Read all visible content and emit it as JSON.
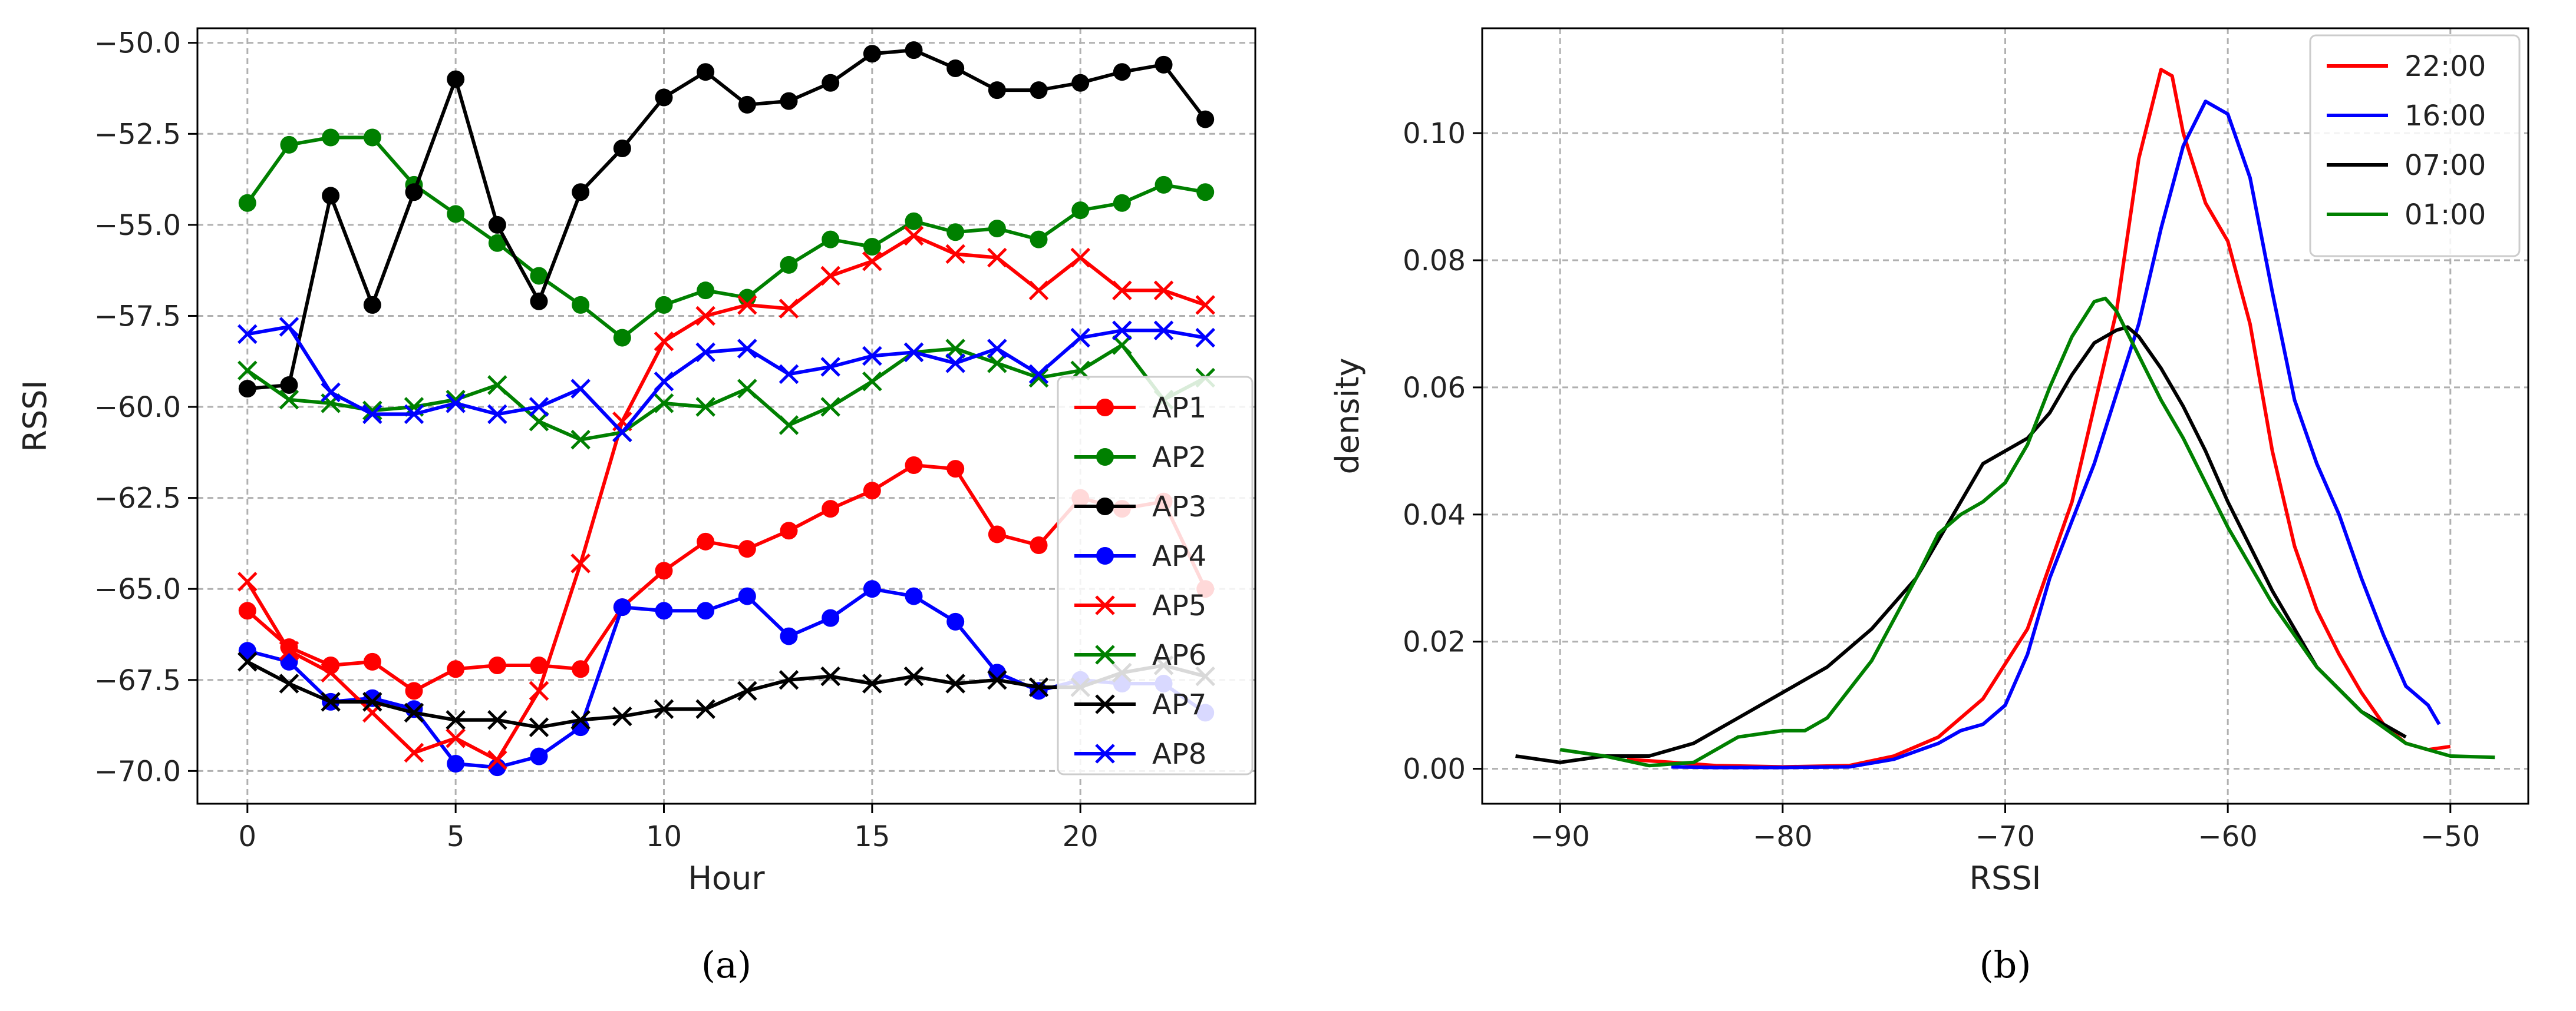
{
  "chart_data": [
    {
      "id": "a",
      "type": "line",
      "caption": "(a)",
      "title": "",
      "xlabel": "Hour",
      "ylabel": "RSSI",
      "xlim": [
        -1.2,
        24.2
      ],
      "ylim": [
        -70.9,
        -49.6
      ],
      "xticks": [
        0,
        5,
        10,
        15,
        20
      ],
      "xtick_labels": [
        "0",
        "5",
        "10",
        "15",
        "20"
      ],
      "yticks": [
        -70.0,
        -67.5,
        -65.0,
        -62.5,
        -60.0,
        -57.5,
        -55.0,
        -52.5,
        -50.0
      ],
      "ytick_labels": [
        "−70.0",
        "−67.5",
        "−65.0",
        "−62.5",
        "−60.0",
        "−57.5",
        "−55.0",
        "−52.5",
        "−50.0"
      ],
      "grid": true,
      "legend_position": "right",
      "x": [
        0,
        1,
        2,
        3,
        4,
        5,
        6,
        7,
        8,
        9,
        10,
        11,
        12,
        13,
        14,
        15,
        16,
        17,
        18,
        19,
        20,
        21,
        22,
        23
      ],
      "series": [
        {
          "name": "AP1",
          "color": "#ff0000",
          "marker": "circle",
          "values": [
            -65.6,
            -66.6,
            -67.1,
            -67.0,
            -67.8,
            -67.2,
            -67.1,
            -67.1,
            -67.2,
            -65.5,
            -64.5,
            -63.7,
            -63.9,
            -63.4,
            -62.8,
            -62.3,
            -61.6,
            -61.7,
            -63.5,
            -63.8,
            -62.5,
            -62.8,
            -62.6,
            -65.0
          ]
        },
        {
          "name": "AP2",
          "color": "#008000",
          "marker": "circle",
          "values": [
            -54.4,
            -52.8,
            -52.6,
            -52.6,
            -53.9,
            -54.7,
            -55.5,
            -56.4,
            -57.2,
            -58.1,
            -57.2,
            -56.8,
            -57.0,
            -56.1,
            -55.4,
            -55.6,
            -54.9,
            -55.2,
            -55.1,
            -55.4,
            -54.6,
            -54.4,
            -53.9,
            -54.1
          ]
        },
        {
          "name": "AP3",
          "color": "#000000",
          "marker": "circle",
          "values": [
            -59.5,
            -59.4,
            -54.2,
            -57.2,
            -54.1,
            -51.0,
            -55.0,
            -57.1,
            -54.1,
            -52.9,
            -51.5,
            -50.8,
            -51.7,
            -51.6,
            -51.1,
            -50.3,
            -50.2,
            -50.7,
            -51.3,
            -51.3,
            -51.1,
            -50.8,
            -50.6,
            -52.1
          ]
        },
        {
          "name": "AP4",
          "color": "#0000ff",
          "marker": "circle",
          "values": [
            -66.7,
            -67.0,
            -68.1,
            -68.0,
            -68.3,
            -69.8,
            -69.9,
            -69.6,
            -68.8,
            -65.5,
            -65.6,
            -65.6,
            -65.2,
            -66.3,
            -65.8,
            -65.0,
            -65.2,
            -65.9,
            -67.3,
            -67.8,
            -67.5,
            -67.6,
            -67.6,
            -68.4
          ]
        },
        {
          "name": "AP5",
          "color": "#ff0000",
          "marker": "x",
          "values": [
            -64.8,
            -66.7,
            -67.3,
            -68.4,
            -69.5,
            -69.1,
            -69.7,
            -67.8,
            -64.3,
            -60.4,
            -58.2,
            -57.5,
            -57.2,
            -57.3,
            -56.4,
            -56.0,
            -55.3,
            -55.8,
            -55.9,
            -56.8,
            -55.9,
            -56.8,
            -56.8,
            -57.2
          ]
        },
        {
          "name": "AP6",
          "color": "#008000",
          "marker": "x",
          "values": [
            -59.0,
            -59.8,
            -59.9,
            -60.1,
            -60.0,
            -59.8,
            -59.4,
            -60.4,
            -60.9,
            -60.7,
            -59.9,
            -60.0,
            -59.5,
            -60.5,
            -60.0,
            -59.3,
            -58.5,
            -58.4,
            -58.8,
            -59.2,
            -59.0,
            -58.3,
            -59.8,
            -59.2
          ]
        },
        {
          "name": "AP7",
          "color": "#000000",
          "marker": "x",
          "values": [
            -67.0,
            -67.6,
            -68.1,
            -68.1,
            -68.4,
            -68.6,
            -68.6,
            -68.8,
            -68.6,
            -68.5,
            -68.3,
            -68.3,
            -67.8,
            -67.5,
            -67.4,
            -67.6,
            -67.4,
            -67.6,
            -67.5,
            -67.7,
            -67.7,
            -67.3,
            -67.1,
            -67.4
          ]
        },
        {
          "name": "AP8",
          "color": "#0000ff",
          "marker": "x",
          "values": [
            -58.0,
            -57.8,
            -59.6,
            -60.2,
            -60.2,
            -59.9,
            -60.2,
            -60.0,
            -59.5,
            -60.7,
            -59.3,
            -58.5,
            -58.4,
            -59.1,
            -58.9,
            -58.6,
            -58.5,
            -58.8,
            -58.4,
            -59.1,
            -58.1,
            -57.9,
            -57.9,
            -58.1
          ]
        }
      ]
    },
    {
      "id": "b",
      "type": "line",
      "caption": "(b)",
      "title": "",
      "xlabel": "RSSI",
      "ylabel": "density",
      "xlim": [
        -93.5,
        -46.5
      ],
      "ylim": [
        -0.0055,
        0.1165
      ],
      "xticks": [
        -90,
        -80,
        -70,
        -60,
        -50
      ],
      "xtick_labels": [
        "−90",
        "−80",
        "−70",
        "−60",
        "−50"
      ],
      "yticks": [
        0.0,
        0.02,
        0.04,
        0.06,
        0.08,
        0.1
      ],
      "ytick_labels": [
        "0.00",
        "0.02",
        "0.04",
        "0.06",
        "0.08",
        "0.10"
      ],
      "grid": true,
      "legend_position": "top-right",
      "series": [
        {
          "name": "22:00",
          "color": "#ff0000",
          "x": [
            -87,
            -85,
            -83,
            -80,
            -77,
            -75,
            -73,
            -71,
            -69,
            -67,
            -65,
            -64,
            -63,
            -62.5,
            -62,
            -61,
            -60,
            -59,
            -58,
            -57,
            -56,
            -55,
            -54,
            -53,
            -52,
            -51,
            -50
          ],
          "y": [
            0.0015,
            0.001,
            0.0005,
            0.0003,
            0.0005,
            0.002,
            0.005,
            0.011,
            0.022,
            0.042,
            0.072,
            0.096,
            0.11,
            0.109,
            0.1,
            0.089,
            0.083,
            0.07,
            0.05,
            0.035,
            0.025,
            0.018,
            0.012,
            0.007,
            0.004,
            0.003,
            0.0035
          ]
        },
        {
          "name": "16:00",
          "color": "#0000ff",
          "x": [
            -85,
            -83,
            -80,
            -77,
            -75,
            -73,
            -72,
            -71,
            -70,
            -69,
            -68,
            -66,
            -64,
            -63,
            -62,
            -61,
            -60,
            -59,
            -58,
            -57,
            -56,
            -55,
            -54,
            -53,
            -52,
            -51,
            -50.5
          ],
          "y": [
            0.0003,
            0.0002,
            0.0002,
            0.0003,
            0.0015,
            0.004,
            0.006,
            0.007,
            0.01,
            0.018,
            0.03,
            0.048,
            0.07,
            0.085,
            0.098,
            0.105,
            0.103,
            0.093,
            0.075,
            0.058,
            0.048,
            0.04,
            0.03,
            0.021,
            0.013,
            0.01,
            0.007
          ]
        },
        {
          "name": "07:00",
          "color": "#000000",
          "x": [
            -92,
            -90,
            -88,
            -86,
            -84,
            -82,
            -80,
            -78,
            -76,
            -74,
            -72,
            -71,
            -70,
            -69,
            -68,
            -67,
            -66,
            -65,
            -64.5,
            -64,
            -63,
            -62,
            -61,
            -60,
            -58,
            -56,
            -54,
            -52
          ],
          "y": [
            0.002,
            0.001,
            0.002,
            0.002,
            0.004,
            0.008,
            0.012,
            0.016,
            0.022,
            0.03,
            0.042,
            0.048,
            0.05,
            0.052,
            0.056,
            0.062,
            0.067,
            0.069,
            0.0695,
            0.068,
            0.063,
            0.057,
            0.05,
            0.042,
            0.028,
            0.016,
            0.009,
            0.005
          ]
        },
        {
          "name": "01:00",
          "color": "#008000",
          "x": [
            -90,
            -88,
            -86,
            -84,
            -82,
            -80,
            -79,
            -78,
            -76,
            -74,
            -73,
            -72,
            -71,
            -70,
            -69,
            -68,
            -67,
            -66,
            -65.5,
            -65,
            -64,
            -63,
            -62,
            -61,
            -60,
            -58,
            -56,
            -54,
            -52,
            -50,
            -48
          ],
          "y": [
            0.003,
            0.002,
            0.0005,
            0.001,
            0.005,
            0.006,
            0.006,
            0.008,
            0.017,
            0.03,
            0.037,
            0.04,
            0.042,
            0.045,
            0.051,
            0.06,
            0.068,
            0.0735,
            0.074,
            0.072,
            0.065,
            0.058,
            0.052,
            0.045,
            0.038,
            0.026,
            0.016,
            0.009,
            0.004,
            0.002,
            0.0018
          ]
        }
      ]
    }
  ]
}
